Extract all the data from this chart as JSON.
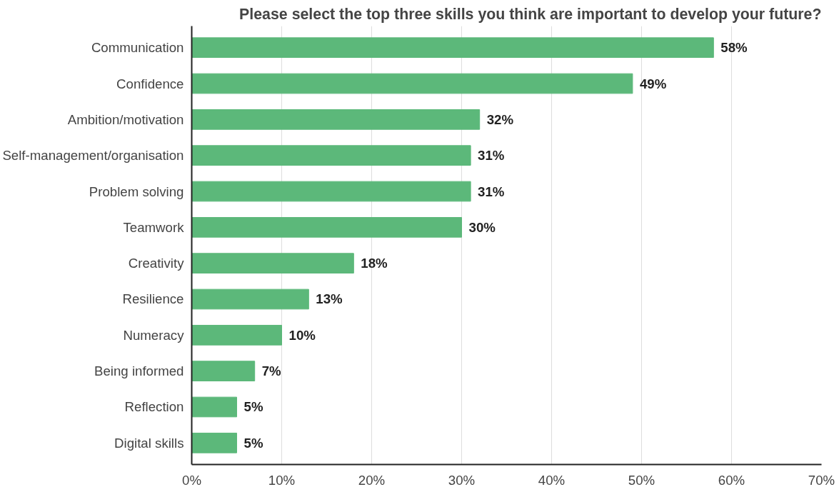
{
  "chart_data": {
    "type": "bar",
    "orientation": "horizontal",
    "title": "Please select the top three skills you think are important to develop your future?",
    "categories": [
      "Communication",
      "Confidence",
      "Ambition/motivation",
      "Self-management/organisation",
      "Problem solving",
      "Teamwork",
      "Creativity",
      "Resilience",
      "Numeracy",
      "Being informed",
      "Reflection",
      "Digital skills"
    ],
    "values": [
      58,
      49,
      32,
      31,
      31,
      30,
      18,
      13,
      10,
      7,
      5,
      5
    ],
    "value_labels": [
      "58%",
      "49%",
      "32%",
      "31%",
      "31%",
      "30%",
      "18%",
      "13%",
      "10%",
      "7%",
      "5%",
      "5%"
    ],
    "color": "#5cb87a",
    "xlim": [
      0,
      70
    ],
    "xticks": [
      {
        "value": 0,
        "label": "0%"
      },
      {
        "value": 10,
        "label": "10%"
      },
      {
        "value": 20,
        "label": "20%"
      },
      {
        "value": 30,
        "label": "30%"
      },
      {
        "value": 40,
        "label": "40%"
      },
      {
        "value": 50,
        "label": "50%"
      },
      {
        "value": 60,
        "label": "60%"
      },
      {
        "value": 70,
        "label": "70%"
      }
    ],
    "grid": "x"
  }
}
